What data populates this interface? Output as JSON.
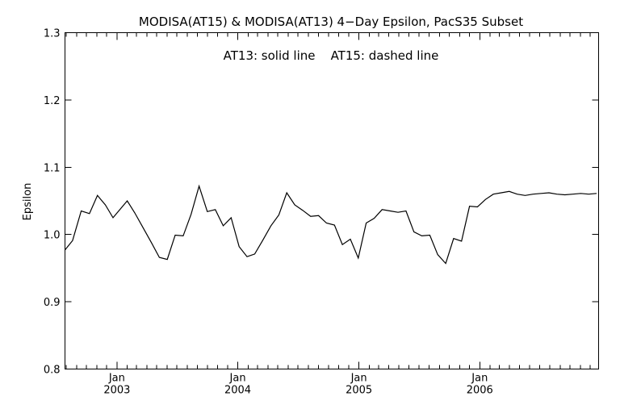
{
  "chart_data": {
    "type": "line",
    "title": "MODISA(AT15) & MODISA(AT13) 4−Day Epsilon, PacS35 Subset",
    "annotation": "AT13: solid line    AT15: dashed line",
    "xlabel": "",
    "ylabel": "Epsilon",
    "ylim": [
      0.8,
      1.3
    ],
    "yticks": [
      "0.8",
      "0.9",
      "1.0",
      "1.1",
      "1.2",
      "1.3"
    ],
    "xlim": [
      "2002-07-28",
      "2006-12-26"
    ],
    "xticks": [
      {
        "date": "2003-01-01",
        "month": "Jan",
        "year": "2003"
      },
      {
        "date": "2004-01-01",
        "month": "Jan",
        "year": "2004"
      },
      {
        "date": "2005-01-01",
        "month": "Jan",
        "year": "2005"
      },
      {
        "date": "2006-01-01",
        "month": "Jan",
        "year": "2006"
      }
    ],
    "grid": false,
    "series": [
      {
        "style": "solid",
        "x": [
          "2002-07-28",
          "2002-08-20",
          "2002-09-15",
          "2002-10-10",
          "2002-11-03",
          "2002-11-27",
          "2002-12-20",
          "2003-01-08",
          "2003-02-01",
          "2003-02-24",
          "2003-03-21",
          "2003-04-15",
          "2003-05-09",
          "2003-06-02",
          "2003-06-26",
          "2003-07-20",
          "2003-08-13",
          "2003-09-06",
          "2003-10-01",
          "2003-10-25",
          "2003-11-18",
          "2003-12-12",
          "2004-01-05",
          "2004-01-29",
          "2004-02-21",
          "2004-03-16",
          "2004-04-10",
          "2004-05-04",
          "2004-05-28",
          "2004-06-21",
          "2004-07-15",
          "2004-08-08",
          "2004-09-01",
          "2004-09-25",
          "2004-10-19",
          "2004-11-12",
          "2004-12-06",
          "2004-12-30",
          "2005-01-23",
          "2005-02-16",
          "2005-03-12",
          "2005-04-05",
          "2005-04-29",
          "2005-05-23",
          "2005-06-16",
          "2005-07-10",
          "2005-08-03",
          "2005-08-27",
          "2005-09-20",
          "2005-10-14",
          "2005-11-07",
          "2005-12-01",
          "2005-12-25",
          "2006-01-18",
          "2006-02-11",
          "2006-03-07",
          "2006-03-31",
          "2006-04-24",
          "2006-05-18",
          "2006-06-11",
          "2006-07-05",
          "2006-07-29",
          "2006-08-22",
          "2006-09-15",
          "2006-10-09",
          "2006-11-02",
          "2006-11-26",
          "2006-12-20"
        ],
        "y": [
          0.977,
          0.991,
          1.035,
          1.031,
          1.058,
          1.044,
          1.025,
          1.036,
          1.05,
          1.032,
          1.01,
          0.988,
          0.966,
          0.963,
          0.999,
          0.998,
          1.03,
          1.072,
          1.034,
          1.037,
          1.013,
          1.025,
          0.982,
          0.967,
          0.971,
          0.991,
          1.013,
          1.029,
          1.062,
          1.044,
          1.036,
          1.027,
          1.028,
          1.017,
          1.014,
          0.985,
          0.993,
          0.965,
          1.017,
          1.024,
          1.037,
          1.035,
          1.033,
          1.035,
          1.004,
          0.998,
          0.999,
          0.97,
          0.957,
          0.994,
          0.99,
          1.042,
          1.041,
          1.052,
          1.06,
          1.062,
          1.064,
          1.06,
          1.058,
          1.06,
          1.061,
          1.062,
          1.06,
          1.059,
          1.06,
          1.061,
          1.06,
          1.061
        ]
      }
    ]
  }
}
